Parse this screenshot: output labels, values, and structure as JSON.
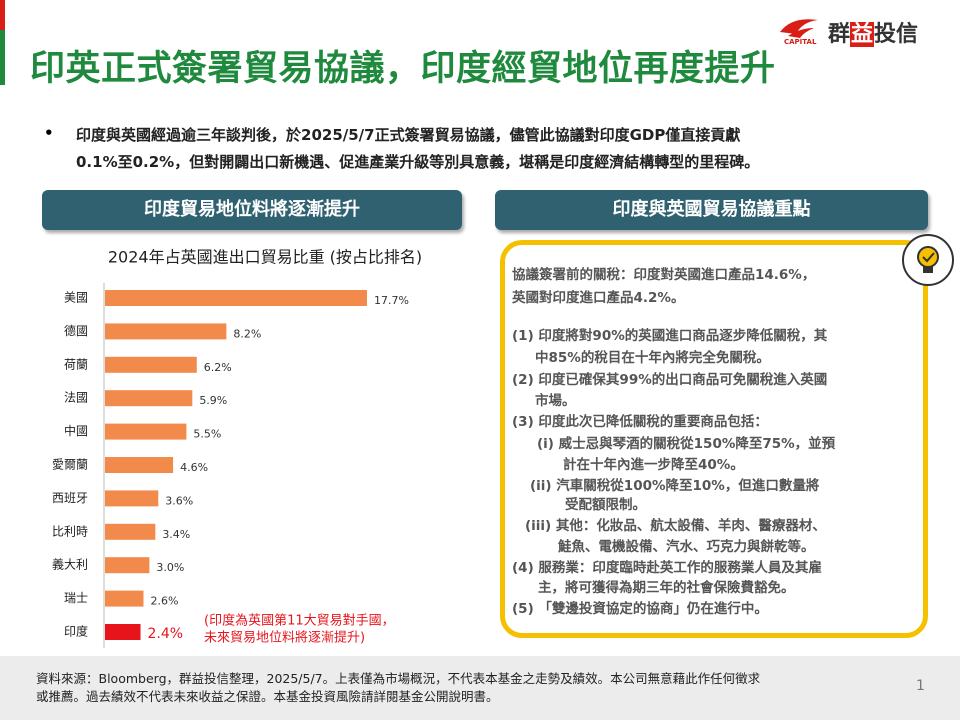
{
  "header": {
    "title": "印英正式簽署貿易協議，印度經貿地位再度提升",
    "logo": {
      "parts": [
        "群",
        "益",
        "投信"
      ],
      "sub": "CAPITAL"
    }
  },
  "bullet": {
    "lines": [
      "印度與英國經過逾三年談判後，於2025/5/7正式簽署貿易協議，儘管此協議對印度GDP僅直接貢獻",
      "0.1%至0.2%，但對開闢出口新機遇、促進產業升級等別具意義，堪稱是印度經濟結構轉型的里程碑。"
    ]
  },
  "left_panel": {
    "heading": "印度貿易地位料將逐漸提升"
  },
  "chart_data": {
    "type": "hbar",
    "title": "2024年占英國進出口貿易比重 (按占比排名)",
    "categories": [
      "美國",
      "德國",
      "荷蘭",
      "法國",
      "中國",
      "愛爾蘭",
      "西班牙",
      "比利時",
      "義大利",
      "瑞士",
      "印度"
    ],
    "values": [
      17.7,
      8.2,
      6.2,
      5.9,
      5.5,
      4.6,
      3.6,
      3.4,
      3.0,
      2.6,
      2.4
    ],
    "value_labels": [
      "17.7%",
      "8.2%",
      "6.2%",
      "5.9%",
      "5.5%",
      "4.6%",
      "3.6%",
      "3.4%",
      "3.0%",
      "2.6%",
      "2.4%"
    ],
    "color": "#f28a4c",
    "colors": [
      "#f28a4c",
      "#f28a4c",
      "#f28a4c",
      "#f28a4c",
      "#f28a4c",
      "#f28a4c",
      "#f28a4c",
      "#f28a4c",
      "#f28a4c",
      "#f28a4c",
      "#e8141c"
    ],
    "annotation": [
      "(印度為英國第11大貿易對手國，",
      "未來貿易地位料將逐漸提升)"
    ]
  },
  "right_panel": {
    "heading": "印度與英國貿易協議重點",
    "lines": [
      "協議簽署前的關稅：印度對英國進口產品14.6%，",
      "英國對印度進口產品4.2%。",
      "(1) 印度將對90%的英國進口商品逐步降低關稅，其",
      "中85%的稅目在十年內將完全免關稅。",
      "(2) 印度已確保其99%的出口商品可免關稅進入英國",
      "市場。",
      "(3) 印度此次已降低關稅的重要商品包括：",
      "(i) 威士忌與琴酒的關稅從150%降至75%，並預",
      "計在十年內進一步降至40%。",
      "(ii) 汽車關稅從100%降至10%，但進口數量將",
      "受配額限制。",
      "(iii) 其他：化妝品、航太設備、羊肉、醫療器材、",
      "鮭魚、電機設備、汽水、巧克力與餅乾等。",
      "(4) 服務業：印度臨時赴英工作的服務業人員及其雇",
      "主，將可獲得為期三年的社會保險費豁免。",
      "(5) 「雙邊投資協定的協商」仍在進行中。"
    ]
  },
  "footer": {
    "lines": [
      "資料來源：Bloomberg，群益投信整理，2025/5/7。上表僅為市場概況，不代表本基金之走勢及績效。本公司無意藉此作任何徵求",
      "或推薦。過去績效不代表未來收益之保證。本基金投資風險請詳閱基金公開說明書。"
    ],
    "page_number": "1"
  }
}
